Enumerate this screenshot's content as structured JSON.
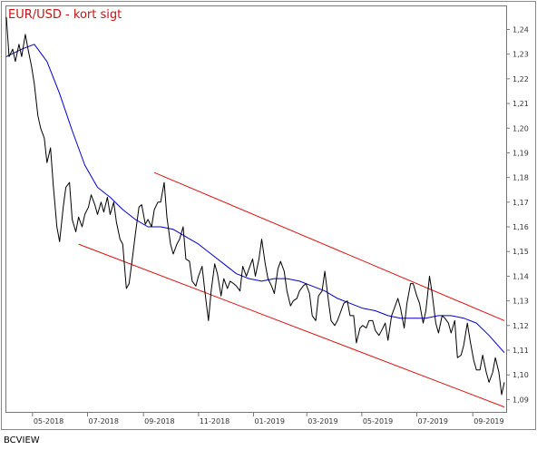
{
  "chart_data": {
    "type": "line",
    "title": "EUR/USD - kort sigt",
    "brand": "BCVIEW",
    "ylim": [
      1.085,
      1.249
    ],
    "y_ticks": [
      "1,24",
      "1,23",
      "1,22",
      "1,21",
      "1,20",
      "1,19",
      "1,18",
      "1,17",
      "1,16",
      "1,15",
      "1,14",
      "1,13",
      "1,12",
      "1,11",
      "1,10",
      "1,09"
    ],
    "y_tick_values": [
      1.24,
      1.23,
      1.22,
      1.21,
      1.2,
      1.19,
      1.18,
      1.17,
      1.16,
      1.15,
      1.14,
      1.13,
      1.12,
      1.11,
      1.1,
      1.09
    ],
    "x_range": [
      "2018-04-02",
      "2019-10-06"
    ],
    "x_ticks": [
      "05-2018",
      "07-2018",
      "09-2018",
      "11-2018",
      "01-2019",
      "03-2019",
      "05-2019",
      "07-2019",
      "09-2019"
    ],
    "x_tick_dates": [
      "2018-05-01",
      "2018-07-01",
      "2018-09-01",
      "2018-11-01",
      "2019-01-01",
      "2019-03-01",
      "2019-05-01",
      "2019-07-01",
      "2019-09-01"
    ],
    "grid": false,
    "colors": {
      "price": "#000000",
      "moving_average": "#0000cc",
      "channel": "#dd1111",
      "title": "#cc1111"
    },
    "series": [
      {
        "role": "price",
        "points": [
          [
            "2018-04-02",
            1.245
          ],
          [
            "2018-04-05",
            1.229
          ],
          [
            "2018-04-09",
            1.232
          ],
          [
            "2018-04-12",
            1.227
          ],
          [
            "2018-04-16",
            1.234
          ],
          [
            "2018-04-19",
            1.229
          ],
          [
            "2018-04-23",
            1.238
          ],
          [
            "2018-04-26",
            1.232
          ],
          [
            "2018-04-30",
            1.225
          ],
          [
            "2018-05-03",
            1.218
          ],
          [
            "2018-05-07",
            1.205
          ],
          [
            "2018-05-10",
            1.2
          ],
          [
            "2018-05-14",
            1.196
          ],
          [
            "2018-05-17",
            1.186
          ],
          [
            "2018-05-21",
            1.192
          ],
          [
            "2018-05-24",
            1.177
          ],
          [
            "2018-05-28",
            1.16
          ],
          [
            "2018-05-31",
            1.154
          ],
          [
            "2018-06-04",
            1.168
          ],
          [
            "2018-06-07",
            1.176
          ],
          [
            "2018-06-11",
            1.178
          ],
          [
            "2018-06-14",
            1.163
          ],
          [
            "2018-06-18",
            1.158
          ],
          [
            "2018-06-21",
            1.164
          ],
          [
            "2018-06-25",
            1.16
          ],
          [
            "2018-06-28",
            1.165
          ],
          [
            "2018-07-02",
            1.168
          ],
          [
            "2018-07-05",
            1.173
          ],
          [
            "2018-07-09",
            1.169
          ],
          [
            "2018-07-12",
            1.165
          ],
          [
            "2018-07-16",
            1.17
          ],
          [
            "2018-07-19",
            1.166
          ],
          [
            "2018-07-23",
            1.172
          ],
          [
            "2018-07-26",
            1.165
          ],
          [
            "2018-07-30",
            1.17
          ],
          [
            "2018-08-02",
            1.162
          ],
          [
            "2018-08-06",
            1.155
          ],
          [
            "2018-08-09",
            1.153
          ],
          [
            "2018-08-13",
            1.135
          ],
          [
            "2018-08-16",
            1.137
          ],
          [
            "2018-08-20",
            1.148
          ],
          [
            "2018-08-23",
            1.157
          ],
          [
            "2018-08-27",
            1.168
          ],
          [
            "2018-08-30",
            1.169
          ],
          [
            "2018-09-03",
            1.161
          ],
          [
            "2018-09-06",
            1.163
          ],
          [
            "2018-09-10",
            1.16
          ],
          [
            "2018-09-13",
            1.167
          ],
          [
            "2018-09-17",
            1.17
          ],
          [
            "2018-09-20",
            1.17
          ],
          [
            "2018-09-24",
            1.178
          ],
          [
            "2018-09-27",
            1.164
          ],
          [
            "2018-10-01",
            1.153
          ],
          [
            "2018-10-04",
            1.149
          ],
          [
            "2018-10-08",
            1.153
          ],
          [
            "2018-10-11",
            1.155
          ],
          [
            "2018-10-15",
            1.16
          ],
          [
            "2018-10-18",
            1.147
          ],
          [
            "2018-10-22",
            1.146
          ],
          [
            "2018-10-25",
            1.138
          ],
          [
            "2018-10-29",
            1.136
          ],
          [
            "2018-11-01",
            1.14
          ],
          [
            "2018-11-05",
            1.144
          ],
          [
            "2018-11-08",
            1.134
          ],
          [
            "2018-11-12",
            1.122
          ],
          [
            "2018-11-15",
            1.134
          ],
          [
            "2018-11-19",
            1.145
          ],
          [
            "2018-11-22",
            1.141
          ],
          [
            "2018-11-26",
            1.132
          ],
          [
            "2018-11-29",
            1.139
          ],
          [
            "2018-12-03",
            1.135
          ],
          [
            "2018-12-06",
            1.138
          ],
          [
            "2018-12-10",
            1.137
          ],
          [
            "2018-12-13",
            1.136
          ],
          [
            "2018-12-17",
            1.134
          ],
          [
            "2018-12-20",
            1.144
          ],
          [
            "2018-12-24",
            1.14
          ],
          [
            "2018-12-27",
            1.143
          ],
          [
            "2018-12-31",
            1.147
          ],
          [
            "2019-01-03",
            1.14
          ],
          [
            "2019-01-07",
            1.147
          ],
          [
            "2019-01-10",
            1.155
          ],
          [
            "2019-01-14",
            1.145
          ],
          [
            "2019-01-17",
            1.139
          ],
          [
            "2019-01-21",
            1.136
          ],
          [
            "2019-01-24",
            1.133
          ],
          [
            "2019-01-28",
            1.143
          ],
          [
            "2019-01-31",
            1.146
          ],
          [
            "2019-02-04",
            1.142
          ],
          [
            "2019-02-07",
            1.134
          ],
          [
            "2019-02-11",
            1.128
          ],
          [
            "2019-02-14",
            1.13
          ],
          [
            "2019-02-18",
            1.131
          ],
          [
            "2019-02-21",
            1.134
          ],
          [
            "2019-02-25",
            1.136
          ],
          [
            "2019-02-28",
            1.137
          ],
          [
            "2019-03-04",
            1.133
          ],
          [
            "2019-03-07",
            1.124
          ],
          [
            "2019-03-11",
            1.122
          ],
          [
            "2019-03-14",
            1.132
          ],
          [
            "2019-03-18",
            1.134
          ],
          [
            "2019-03-21",
            1.142
          ],
          [
            "2019-03-25",
            1.13
          ],
          [
            "2019-03-28",
            1.122
          ],
          [
            "2019-04-01",
            1.12
          ],
          [
            "2019-04-04",
            1.122
          ],
          [
            "2019-04-08",
            1.126
          ],
          [
            "2019-04-11",
            1.129
          ],
          [
            "2019-04-15",
            1.13
          ],
          [
            "2019-04-18",
            1.124
          ],
          [
            "2019-04-22",
            1.124
          ],
          [
            "2019-04-25",
            1.113
          ],
          [
            "2019-04-29",
            1.119
          ],
          [
            "2019-05-02",
            1.12
          ],
          [
            "2019-05-06",
            1.119
          ],
          [
            "2019-05-09",
            1.122
          ],
          [
            "2019-05-13",
            1.122
          ],
          [
            "2019-05-16",
            1.118
          ],
          [
            "2019-05-20",
            1.116
          ],
          [
            "2019-05-23",
            1.118
          ],
          [
            "2019-05-27",
            1.121
          ],
          [
            "2019-05-30",
            1.114
          ],
          [
            "2019-06-03",
            1.124
          ],
          [
            "2019-06-06",
            1.127
          ],
          [
            "2019-06-10",
            1.131
          ],
          [
            "2019-06-13",
            1.127
          ],
          [
            "2019-06-17",
            1.119
          ],
          [
            "2019-06-20",
            1.129
          ],
          [
            "2019-06-24",
            1.137
          ],
          [
            "2019-06-27",
            1.137
          ],
          [
            "2019-07-01",
            1.132
          ],
          [
            "2019-07-04",
            1.129
          ],
          [
            "2019-07-08",
            1.121
          ],
          [
            "2019-07-11",
            1.126
          ],
          [
            "2019-07-15",
            1.14
          ],
          [
            "2019-07-18",
            1.133
          ],
          [
            "2019-07-22",
            1.121
          ],
          [
            "2019-07-25",
            1.117
          ],
          [
            "2019-07-29",
            1.124
          ],
          [
            "2019-08-01",
            1.123
          ],
          [
            "2019-08-05",
            1.121
          ],
          [
            "2019-08-08",
            1.117
          ],
          [
            "2019-08-12",
            1.122
          ],
          [
            "2019-08-15",
            1.107
          ],
          [
            "2019-08-19",
            1.108
          ],
          [
            "2019-08-22",
            1.112
          ],
          [
            "2019-08-26",
            1.121
          ],
          [
            "2019-08-29",
            1.114
          ],
          [
            "2019-09-02",
            1.106
          ],
          [
            "2019-09-05",
            1.102
          ],
          [
            "2019-09-09",
            1.102
          ],
          [
            "2019-09-12",
            1.108
          ],
          [
            "2019-09-16",
            1.101
          ],
          [
            "2019-09-19",
            1.097
          ],
          [
            "2019-09-23",
            1.101
          ],
          [
            "2019-09-26",
            1.107
          ],
          [
            "2019-09-30",
            1.101
          ],
          [
            "2019-10-03",
            1.092
          ],
          [
            "2019-10-06",
            1.097
          ]
        ]
      },
      {
        "role": "moving_average",
        "points": [
          [
            "2018-04-02",
            1.229
          ],
          [
            "2018-04-19",
            1.232
          ],
          [
            "2018-05-03",
            1.234
          ],
          [
            "2018-05-17",
            1.227
          ],
          [
            "2018-05-31",
            1.214
          ],
          [
            "2018-06-14",
            1.199
          ],
          [
            "2018-06-28",
            1.185
          ],
          [
            "2018-07-12",
            1.176
          ],
          [
            "2018-07-26",
            1.172
          ],
          [
            "2018-08-09",
            1.167
          ],
          [
            "2018-08-23",
            1.163
          ],
          [
            "2018-09-06",
            1.16
          ],
          [
            "2018-09-20",
            1.16
          ],
          [
            "2018-10-04",
            1.159
          ],
          [
            "2018-10-18",
            1.156
          ],
          [
            "2018-11-01",
            1.153
          ],
          [
            "2018-11-15",
            1.149
          ],
          [
            "2018-11-29",
            1.145
          ],
          [
            "2018-12-13",
            1.141
          ],
          [
            "2018-12-27",
            1.139
          ],
          [
            "2019-01-10",
            1.138
          ],
          [
            "2019-01-24",
            1.139
          ],
          [
            "2019-02-07",
            1.139
          ],
          [
            "2019-02-21",
            1.138
          ],
          [
            "2019-03-07",
            1.136
          ],
          [
            "2019-03-21",
            1.134
          ],
          [
            "2019-04-04",
            1.131
          ],
          [
            "2019-04-18",
            1.129
          ],
          [
            "2019-05-02",
            1.127
          ],
          [
            "2019-05-16",
            1.126
          ],
          [
            "2019-05-30",
            1.124
          ],
          [
            "2019-06-13",
            1.123
          ],
          [
            "2019-06-27",
            1.123
          ],
          [
            "2019-07-11",
            1.123
          ],
          [
            "2019-07-25",
            1.124
          ],
          [
            "2019-08-08",
            1.124
          ],
          [
            "2019-08-22",
            1.123
          ],
          [
            "2019-09-05",
            1.121
          ],
          [
            "2019-09-19",
            1.116
          ],
          [
            "2019-10-06",
            1.109
          ]
        ]
      },
      {
        "role": "channel_upper",
        "points": [
          [
            "2018-09-13",
            1.182
          ],
          [
            "2019-10-06",
            1.122
          ]
        ]
      },
      {
        "role": "channel_lower",
        "points": [
          [
            "2018-06-21",
            1.153
          ],
          [
            "2019-10-06",
            1.087
          ]
        ]
      }
    ]
  }
}
